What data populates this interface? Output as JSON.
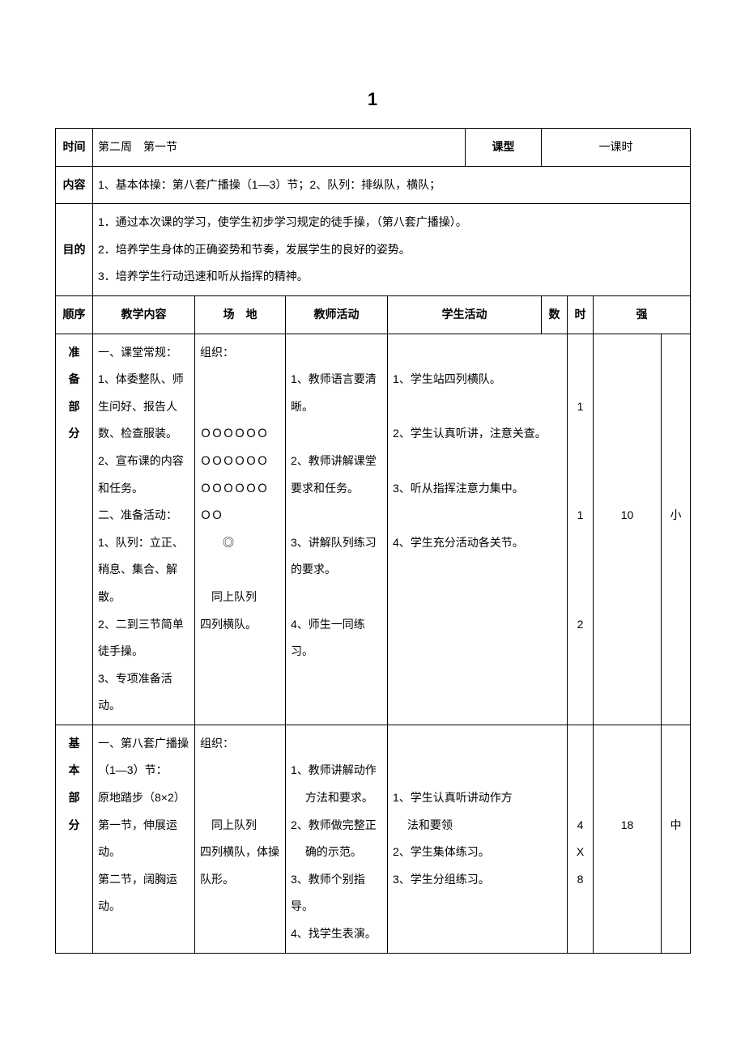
{
  "page_number": "1",
  "header": {
    "time_label": "时间",
    "time_value": "第二周　第一节",
    "ktype_label": "课型",
    "ktype_value": "一课时",
    "content_label": "内容",
    "content_value": "1、基本体操：第八套广播操（1—3）节；2、队列：排纵队，横队；",
    "purpose_label": "目的",
    "purpose_lines": "1．通过本次课的学习，使学生初步学习规定的徒手操，（第八套广播操）。\n2．培养学生身体的正确姿势和节奏，发展学生的良好的姿势。\n3．培养学生行动迅速和听从指挥的精神。"
  },
  "cols": {
    "order": "顺序",
    "content": "教学内容",
    "field": "场　地",
    "teacher": "教师活动",
    "student": "学生活动",
    "count": "数",
    "time": "时",
    "intensity": "强"
  },
  "prep": {
    "label": "准\n备\n部\n分",
    "content": "一、课堂常规：\n1、体委整队、师生问好、报告人数、检查服装。\n2、宣布课的内容和任务。\n二、准备活动：\n1、队列：立正、稍息、集合、解散。\n2、二到三节简单徒手操。\n3、专项准备活动。",
    "field": "组织：\n\n\nＯＯＯＯＯＯ\nＯＯＯＯＯＯ\nＯＯＯＯＯＯ\nＯＯ\n　　◎\n\n　同上队列\n四列横队。",
    "teacher": "\n1、教师语言要清晰。\n\n2、教师讲解课堂要求和任务。\n\n3、讲解队列练习的要求。\n\n4、师生一同练习。",
    "student": "\n1、学生站四列横队。\n\n2、学生认真听讲，注意关查。\n\n3、听从指挥注意力集中。\n\n4、学生充分活动各关节。",
    "count": "\n\n1\n\n\n\n1\n\n\n\n2",
    "time": "\n\n\n\n\n\n10",
    "intensity": "\n\n\n\n\n\n小"
  },
  "basic": {
    "label": "基\n本\n部\n分",
    "content": "一、第八套广播操（1—3）节：\n原地踏步（8×2）\n第一节，伸展运动。\n第二节，阔胸运动。",
    "field": "组织：\n\n\n　同上队列\n四列横队，体操\n队形。",
    "teacher": "\n1、教师讲解动作\n　 方法和要求。\n2、教师做完整正\n　 确的示范。\n3、教师个别指导。\n4、找学生表演。",
    "student": "\n\n1、学生认真听讲动作方\n　 法和要领\n2、学生集体练习。\n3、学生分组练习。",
    "count": "\n\n\n4\nX\n8",
    "time": "\n\n\n18",
    "intensity": "\n\n\n中"
  }
}
